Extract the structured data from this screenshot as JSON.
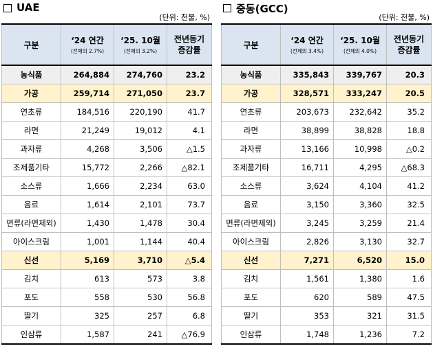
{
  "unit_label": "(단위: 천불, %)",
  "columns": {
    "category": "구분",
    "rate_line1": "전년동기",
    "rate_line2": "증감률"
  },
  "panels": [
    {
      "title": "UAE",
      "col_2024": "‘24 연간",
      "col_2024_sub": "(전체의 2.7%)",
      "col_2025": "‘25. 10월",
      "col_2025_sub": "(전체의 3.2%)",
      "rows": [
        {
          "kind": "agri",
          "name": "농식품",
          "v2024": "264,884",
          "v2025": "274,760",
          "rate": "23.2"
        },
        {
          "kind": "proc",
          "name": "가공",
          "v2024": "259,714",
          "v2025": "271,050",
          "rate": "23.7"
        },
        {
          "kind": "item",
          "name": "연초류",
          "v2024": "184,516",
          "v2025": "220,190",
          "rate": "41.7"
        },
        {
          "kind": "item",
          "name": "라면",
          "v2024": "21,249",
          "v2025": "19,012",
          "rate": "4.1"
        },
        {
          "kind": "item",
          "name": "과자류",
          "v2024": "4,268",
          "v2025": "3,506",
          "rate": "△1.5"
        },
        {
          "kind": "item",
          "name": "조제품기타",
          "v2024": "15,772",
          "v2025": "2,266",
          "rate": "△82.1"
        },
        {
          "kind": "item",
          "name": "소스류",
          "v2024": "1,666",
          "v2025": "2,234",
          "rate": "63.0"
        },
        {
          "kind": "item",
          "name": "음료",
          "v2024": "1,614",
          "v2025": "2,101",
          "rate": "73.7"
        },
        {
          "kind": "item",
          "name": "면류(라면제외)",
          "v2024": "1,430",
          "v2025": "1,478",
          "rate": "30.4"
        },
        {
          "kind": "item",
          "name": "아이스크림",
          "v2024": "1,001",
          "v2025": "1,144",
          "rate": "40.4"
        },
        {
          "kind": "fresh",
          "name": "신선",
          "v2024": "5,169",
          "v2025": "3,710",
          "rate": "△5.4"
        },
        {
          "kind": "item",
          "name": "김치",
          "v2024": "613",
          "v2025": "573",
          "rate": "3.8"
        },
        {
          "kind": "item",
          "name": "포도",
          "v2024": "558",
          "v2025": "530",
          "rate": "56.8"
        },
        {
          "kind": "item",
          "name": "딸기",
          "v2024": "325",
          "v2025": "257",
          "rate": "6.8"
        },
        {
          "kind": "item",
          "name": "인삼류",
          "v2024": "1,587",
          "v2025": "241",
          "rate": "△76.9"
        }
      ]
    },
    {
      "title": "중동(GCC)",
      "col_2024": "‘24 연간",
      "col_2024_sub": "(전체의 3.4%)",
      "col_2025": "‘25. 10월",
      "col_2025_sub": "(전체의 4.0%)",
      "rows": [
        {
          "kind": "agri",
          "name": "농식품",
          "v2024": "335,843",
          "v2025": "339,767",
          "rate": "20.3"
        },
        {
          "kind": "proc",
          "name": "가공",
          "v2024": "328,571",
          "v2025": "333,247",
          "rate": "20.5"
        },
        {
          "kind": "item",
          "name": "연초류",
          "v2024": "203,673",
          "v2025": "232,642",
          "rate": "35.2"
        },
        {
          "kind": "item",
          "name": "라면",
          "v2024": "38,899",
          "v2025": "38,828",
          "rate": "18.8"
        },
        {
          "kind": "item",
          "name": "과자류",
          "v2024": "13,166",
          "v2025": "10,998",
          "rate": "△0.2"
        },
        {
          "kind": "item",
          "name": "조제품기타",
          "v2024": "16,711",
          "v2025": "4,295",
          "rate": "△68.3"
        },
        {
          "kind": "item",
          "name": "소스류",
          "v2024": "3,624",
          "v2025": "4,104",
          "rate": "41.2"
        },
        {
          "kind": "item",
          "name": "음료",
          "v2024": "3,150",
          "v2025": "3,360",
          "rate": "32.5"
        },
        {
          "kind": "item",
          "name": "면류(라면제외)",
          "v2024": "3,245",
          "v2025": "3,259",
          "rate": "21.4"
        },
        {
          "kind": "item",
          "name": "아이스크림",
          "v2024": "2,826",
          "v2025": "3,130",
          "rate": "32.7"
        },
        {
          "kind": "fresh",
          "name": "신선",
          "v2024": "7,271",
          "v2025": "6,520",
          "rate": "15.0"
        },
        {
          "kind": "item",
          "name": "김치",
          "v2024": "1,561",
          "v2025": "1,380",
          "rate": "1.6"
        },
        {
          "kind": "item",
          "name": "포도",
          "v2024": "620",
          "v2025": "589",
          "rate": "47.5"
        },
        {
          "kind": "item",
          "name": "딸기",
          "v2024": "353",
          "v2025": "321",
          "rate": "31.5"
        },
        {
          "kind": "item",
          "name": "인삼류",
          "v2024": "1,748",
          "v2025": "1,236",
          "rate": "7.2"
        }
      ]
    }
  ]
}
